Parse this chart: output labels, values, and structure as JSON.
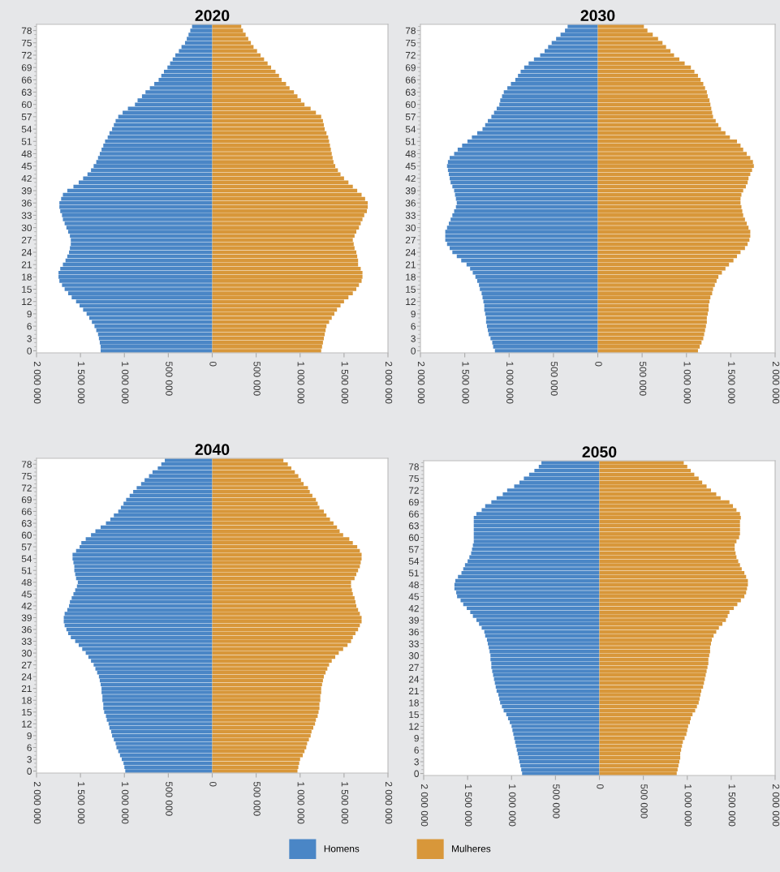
{
  "chart_data": [
    {
      "type": "bar",
      "title": "2020",
      "orientation": "horizontal",
      "stacked": true,
      "legend": false,
      "categories": [
        null,
        "78",
        null,
        null,
        "75",
        null,
        null,
        "72",
        null,
        null,
        "69",
        null,
        null,
        "66",
        null,
        null,
        "63",
        null,
        null,
        "60",
        null,
        null,
        "57",
        null,
        null,
        "54",
        null,
        null,
        "51",
        null,
        null,
        "48",
        null,
        null,
        "45",
        null,
        null,
        "42",
        null,
        null,
        "39",
        null,
        null,
        "36",
        null,
        null,
        "33",
        null,
        null,
        "30",
        null,
        null,
        "27",
        null,
        null,
        "24",
        null,
        null,
        "21",
        null,
        null,
        "18",
        null,
        null,
        "15",
        null,
        null,
        "12",
        null,
        null,
        "9",
        null,
        null,
        "6",
        null,
        null,
        "3",
        null,
        null,
        "0"
      ],
      "xlim": [
        -2000000,
        2000000
      ],
      "xticks": [
        {
          "value": -2000000,
          "label": "2 000 000"
        },
        {
          "value": -1500000,
          "label": "1 500 000"
        },
        {
          "value": -1000000,
          "label": "1 000 000"
        },
        {
          "value": -500000,
          "label": "500 000"
        },
        0,
        {
          "value": 500000,
          "label": "500 000"
        },
        {
          "value": 1000000,
          "label": "1 000 000"
        },
        {
          "value": 1500000,
          "label": "1 500 000"
        },
        {
          "value": 2000000,
          "label": "2 000 000"
        }
      ],
      "series": [
        {
          "color": "#4a86c6",
          "values": [
            -230000,
            -250000,
            -270000,
            -290000,
            -310000,
            -350000,
            -380000,
            -420000,
            -450000,
            -480000,
            -510000,
            -550000,
            -580000,
            -610000,
            -660000,
            -710000,
            -760000,
            -800000,
            -850000,
            -880000,
            -960000,
            -1020000,
            -1070000,
            -1100000,
            -1120000,
            -1140000,
            -1170000,
            -1190000,
            -1220000,
            -1240000,
            -1260000,
            -1280000,
            -1300000,
            -1320000,
            -1350000,
            -1380000,
            -1420000,
            -1470000,
            -1520000,
            -1580000,
            -1650000,
            -1700000,
            -1720000,
            -1740000,
            -1740000,
            -1730000,
            -1710000,
            -1700000,
            -1680000,
            -1660000,
            -1640000,
            -1620000,
            -1610000,
            -1610000,
            -1620000,
            -1630000,
            -1650000,
            -1670000,
            -1700000,
            -1730000,
            -1750000,
            -1750000,
            -1740000,
            -1710000,
            -1680000,
            -1640000,
            -1600000,
            -1550000,
            -1510000,
            -1470000,
            -1430000,
            -1400000,
            -1370000,
            -1340000,
            -1320000,
            -1300000,
            -1290000,
            -1280000,
            -1270000,
            -1270000
          ]
        },
        {
          "color": "#d8973a",
          "values": [
            330000,
            350000,
            380000,
            410000,
            440000,
            470000,
            510000,
            550000,
            590000,
            630000,
            670000,
            720000,
            760000,
            790000,
            840000,
            880000,
            930000,
            970000,
            1010000,
            1050000,
            1120000,
            1180000,
            1240000,
            1260000,
            1270000,
            1280000,
            1300000,
            1320000,
            1330000,
            1340000,
            1350000,
            1360000,
            1370000,
            1380000,
            1400000,
            1430000,
            1460000,
            1500000,
            1550000,
            1600000,
            1650000,
            1700000,
            1740000,
            1770000,
            1770000,
            1760000,
            1730000,
            1710000,
            1690000,
            1670000,
            1640000,
            1620000,
            1600000,
            1610000,
            1620000,
            1640000,
            1650000,
            1660000,
            1660000,
            1690000,
            1710000,
            1710000,
            1700000,
            1670000,
            1640000,
            1600000,
            1550000,
            1500000,
            1460000,
            1420000,
            1390000,
            1360000,
            1330000,
            1300000,
            1290000,
            1280000,
            1270000,
            1260000,
            1250000,
            1240000
          ]
        }
      ]
    },
    {
      "type": "bar",
      "title": "2030",
      "orientation": "horizontal",
      "stacked": true,
      "legend": false,
      "categories": [
        null,
        "78",
        null,
        null,
        "75",
        null,
        null,
        "72",
        null,
        null,
        "69",
        null,
        null,
        "66",
        null,
        null,
        "63",
        null,
        null,
        "60",
        null,
        null,
        "57",
        null,
        null,
        "54",
        null,
        null,
        "51",
        null,
        null,
        "48",
        null,
        null,
        "45",
        null,
        null,
        "42",
        null,
        null,
        "39",
        null,
        null,
        "36",
        null,
        null,
        "33",
        null,
        null,
        "30",
        null,
        null,
        "27",
        null,
        null,
        "24",
        null,
        null,
        "21",
        null,
        null,
        "18",
        null,
        null,
        "15",
        null,
        null,
        "12",
        null,
        null,
        "9",
        null,
        null,
        "6",
        null,
        null,
        "3",
        null,
        null,
        "0"
      ],
      "xlim": [
        -2000000,
        2000000
      ],
      "xticks": [
        {
          "value": -2000000,
          "label": "2 000 000"
        },
        {
          "value": -1500000,
          "label": "1 500 000"
        },
        {
          "value": -1000000,
          "label": "1 000 000"
        },
        {
          "value": -500000,
          "label": "500 000"
        },
        0,
        {
          "value": 500000,
          "label": "500 000"
        },
        {
          "value": 1000000,
          "label": "1 000 000"
        },
        {
          "value": 1500000,
          "label": "1 500 000"
        },
        {
          "value": 2000000,
          "label": "2 000 000"
        }
      ],
      "series": [
        {
          "color": "#4a86c6",
          "values": [
            -340000,
            -370000,
            -420000,
            -470000,
            -520000,
            -560000,
            -600000,
            -650000,
            -720000,
            -780000,
            -830000,
            -870000,
            -900000,
            -930000,
            -980000,
            -1020000,
            -1060000,
            -1080000,
            -1100000,
            -1110000,
            -1140000,
            -1170000,
            -1200000,
            -1240000,
            -1270000,
            -1300000,
            -1360000,
            -1420000,
            -1470000,
            -1530000,
            -1580000,
            -1620000,
            -1670000,
            -1690000,
            -1700000,
            -1690000,
            -1680000,
            -1670000,
            -1660000,
            -1640000,
            -1620000,
            -1610000,
            -1600000,
            -1590000,
            -1600000,
            -1620000,
            -1640000,
            -1660000,
            -1680000,
            -1700000,
            -1720000,
            -1720000,
            -1720000,
            -1700000,
            -1670000,
            -1640000,
            -1590000,
            -1540000,
            -1480000,
            -1440000,
            -1410000,
            -1380000,
            -1360000,
            -1340000,
            -1330000,
            -1310000,
            -1300000,
            -1290000,
            -1280000,
            -1280000,
            -1270000,
            -1260000,
            -1260000,
            -1250000,
            -1240000,
            -1230000,
            -1210000,
            -1190000,
            -1180000,
            -1160000
          ]
        },
        {
          "color": "#d8973a",
          "values": [
            520000,
            560000,
            620000,
            680000,
            730000,
            770000,
            820000,
            860000,
            920000,
            980000,
            1050000,
            1090000,
            1130000,
            1160000,
            1190000,
            1210000,
            1230000,
            1240000,
            1260000,
            1270000,
            1280000,
            1290000,
            1300000,
            1330000,
            1360000,
            1390000,
            1440000,
            1490000,
            1570000,
            1610000,
            1640000,
            1680000,
            1720000,
            1750000,
            1760000,
            1740000,
            1720000,
            1700000,
            1690000,
            1670000,
            1640000,
            1620000,
            1610000,
            1610000,
            1620000,
            1630000,
            1640000,
            1660000,
            1680000,
            1700000,
            1720000,
            1720000,
            1710000,
            1690000,
            1660000,
            1610000,
            1570000,
            1530000,
            1480000,
            1440000,
            1400000,
            1360000,
            1340000,
            1320000,
            1300000,
            1290000,
            1270000,
            1260000,
            1250000,
            1250000,
            1240000,
            1230000,
            1230000,
            1220000,
            1210000,
            1200000,
            1190000,
            1170000,
            1150000,
            1130000
          ]
        }
      ]
    },
    {
      "type": "bar",
      "title": "2040",
      "orientation": "horizontal",
      "stacked": true,
      "legend": false,
      "categories": [
        null,
        "78",
        null,
        null,
        "75",
        null,
        null,
        "72",
        null,
        null,
        "69",
        null,
        null,
        "66",
        null,
        null,
        "63",
        null,
        null,
        "60",
        null,
        null,
        "57",
        null,
        null,
        "54",
        null,
        null,
        "51",
        null,
        null,
        "48",
        null,
        null,
        "45",
        null,
        null,
        "42",
        null,
        null,
        "39",
        null,
        null,
        "36",
        null,
        null,
        "33",
        null,
        null,
        "30",
        null,
        null,
        "27",
        null,
        null,
        "24",
        null,
        null,
        "21",
        null,
        null,
        "18",
        null,
        null,
        "15",
        null,
        null,
        "12",
        null,
        null,
        "9",
        null,
        null,
        "6",
        null,
        null,
        "3",
        null,
        null,
        "0"
      ],
      "xlim": [
        -2000000,
        2000000
      ],
      "xticks": [
        {
          "value": -2000000,
          "label": "2 000 000"
        },
        {
          "value": -1500000,
          "label": "1 500 000"
        },
        {
          "value": -1000000,
          "label": "1 000 000"
        },
        {
          "value": -500000,
          "label": "500 000"
        },
        0,
        {
          "value": 500000,
          "label": "500 000"
        },
        {
          "value": 1000000,
          "label": "1 000 000"
        },
        {
          "value": 1500000,
          "label": "1 500 000"
        },
        {
          "value": 2000000,
          "label": "2 000 000"
        }
      ],
      "series": [
        {
          "color": "#4a86c6",
          "values": [
            -540000,
            -580000,
            -620000,
            -680000,
            -720000,
            -770000,
            -810000,
            -860000,
            -900000,
            -940000,
            -980000,
            -1010000,
            -1040000,
            -1070000,
            -1120000,
            -1160000,
            -1210000,
            -1270000,
            -1330000,
            -1380000,
            -1440000,
            -1490000,
            -1510000,
            -1550000,
            -1590000,
            -1590000,
            -1580000,
            -1570000,
            -1570000,
            -1560000,
            -1550000,
            -1530000,
            -1540000,
            -1560000,
            -1580000,
            -1600000,
            -1620000,
            -1630000,
            -1650000,
            -1680000,
            -1690000,
            -1690000,
            -1680000,
            -1660000,
            -1640000,
            -1610000,
            -1560000,
            -1520000,
            -1480000,
            -1440000,
            -1410000,
            -1380000,
            -1350000,
            -1330000,
            -1310000,
            -1290000,
            -1280000,
            -1270000,
            -1260000,
            -1260000,
            -1250000,
            -1250000,
            -1240000,
            -1240000,
            -1230000,
            -1210000,
            -1200000,
            -1180000,
            -1170000,
            -1150000,
            -1140000,
            -1120000,
            -1100000,
            -1090000,
            -1070000,
            -1050000,
            -1030000,
            -1010000,
            -1000000,
            -990000
          ]
        },
        {
          "color": "#d8973a",
          "values": [
            810000,
            860000,
            900000,
            940000,
            980000,
            1010000,
            1040000,
            1090000,
            1110000,
            1140000,
            1180000,
            1200000,
            1220000,
            1270000,
            1300000,
            1340000,
            1380000,
            1420000,
            1450000,
            1490000,
            1560000,
            1600000,
            1650000,
            1680000,
            1700000,
            1700000,
            1690000,
            1680000,
            1660000,
            1640000,
            1620000,
            1580000,
            1580000,
            1590000,
            1600000,
            1620000,
            1630000,
            1640000,
            1660000,
            1680000,
            1700000,
            1700000,
            1680000,
            1660000,
            1630000,
            1600000,
            1580000,
            1540000,
            1490000,
            1440000,
            1400000,
            1360000,
            1330000,
            1310000,
            1290000,
            1270000,
            1260000,
            1250000,
            1240000,
            1240000,
            1230000,
            1230000,
            1220000,
            1220000,
            1210000,
            1200000,
            1180000,
            1170000,
            1150000,
            1130000,
            1120000,
            1100000,
            1080000,
            1070000,
            1050000,
            1030000,
            1000000,
            990000,
            980000,
            970000
          ]
        }
      ]
    },
    {
      "type": "bar",
      "title": "2050",
      "orientation": "horizontal",
      "stacked": true,
      "legend": "bottom",
      "categories": [
        null,
        "78",
        null,
        null,
        "75",
        null,
        null,
        "72",
        null,
        null,
        "69",
        null,
        null,
        "66",
        null,
        null,
        "63",
        null,
        null,
        "60",
        null,
        null,
        "57",
        null,
        null,
        "54",
        null,
        null,
        "51",
        null,
        null,
        "48",
        null,
        null,
        "45",
        null,
        null,
        "42",
        null,
        null,
        "39",
        null,
        null,
        "36",
        null,
        null,
        "33",
        null,
        null,
        "30",
        null,
        null,
        "27",
        null,
        null,
        "24",
        null,
        null,
        "21",
        null,
        null,
        "18",
        null,
        null,
        "15",
        null,
        null,
        "12",
        null,
        null,
        "9",
        null,
        null,
        "6",
        null,
        null,
        "3",
        null,
        null,
        "0"
      ],
      "xlim": [
        -2000000,
        2000000
      ],
      "xticks": [
        {
          "value": -2000000,
          "label": "2 000 000"
        },
        {
          "value": -1500000,
          "label": "1 500 000"
        },
        {
          "value": -1000000,
          "label": "1 000 000"
        },
        {
          "value": -500000,
          "label": "500 000"
        },
        0,
        {
          "value": 500000,
          "label": "500 000"
        },
        {
          "value": 1000000,
          "label": "1 000 000"
        },
        {
          "value": 1500000,
          "label": "1 500 000"
        },
        {
          "value": 2000000,
          "label": "2 000 000"
        }
      ],
      "series": [
        {
          "name": "Homens",
          "color": "#4a86c6",
          "values": [
            -660000,
            -690000,
            -740000,
            -800000,
            -860000,
            -910000,
            -970000,
            -1050000,
            -1100000,
            -1170000,
            -1230000,
            -1300000,
            -1340000,
            -1400000,
            -1430000,
            -1430000,
            -1430000,
            -1430000,
            -1430000,
            -1430000,
            -1430000,
            -1440000,
            -1450000,
            -1460000,
            -1480000,
            -1500000,
            -1530000,
            -1550000,
            -1570000,
            -1610000,
            -1640000,
            -1650000,
            -1650000,
            -1630000,
            -1620000,
            -1580000,
            -1550000,
            -1510000,
            -1470000,
            -1440000,
            -1400000,
            -1370000,
            -1340000,
            -1310000,
            -1300000,
            -1280000,
            -1270000,
            -1260000,
            -1250000,
            -1240000,
            -1240000,
            -1230000,
            -1230000,
            -1220000,
            -1210000,
            -1200000,
            -1190000,
            -1180000,
            -1170000,
            -1150000,
            -1140000,
            -1130000,
            -1110000,
            -1090000,
            -1060000,
            -1040000,
            -1020000,
            -1000000,
            -990000,
            -980000,
            -970000,
            -960000,
            -950000,
            -940000,
            -930000,
            -920000,
            -910000,
            -900000,
            -890000,
            -880000
          ]
        },
        {
          "name": "Mulheres",
          "color": "#d8973a",
          "values": [
            960000,
            1000000,
            1040000,
            1080000,
            1130000,
            1170000,
            1220000,
            1270000,
            1330000,
            1380000,
            1480000,
            1520000,
            1560000,
            1600000,
            1610000,
            1600000,
            1600000,
            1600000,
            1600000,
            1590000,
            1560000,
            1540000,
            1540000,
            1550000,
            1560000,
            1580000,
            1600000,
            1620000,
            1650000,
            1670000,
            1690000,
            1690000,
            1680000,
            1670000,
            1650000,
            1610000,
            1570000,
            1530000,
            1480000,
            1460000,
            1440000,
            1400000,
            1360000,
            1330000,
            1300000,
            1280000,
            1270000,
            1260000,
            1260000,
            1250000,
            1240000,
            1240000,
            1230000,
            1220000,
            1210000,
            1200000,
            1190000,
            1180000,
            1160000,
            1150000,
            1140000,
            1130000,
            1110000,
            1090000,
            1060000,
            1040000,
            1030000,
            1010000,
            1000000,
            990000,
            970000,
            950000,
            940000,
            930000,
            920000,
            920000,
            910000,
            900000,
            890000,
            880000
          ]
        }
      ]
    }
  ]
}
